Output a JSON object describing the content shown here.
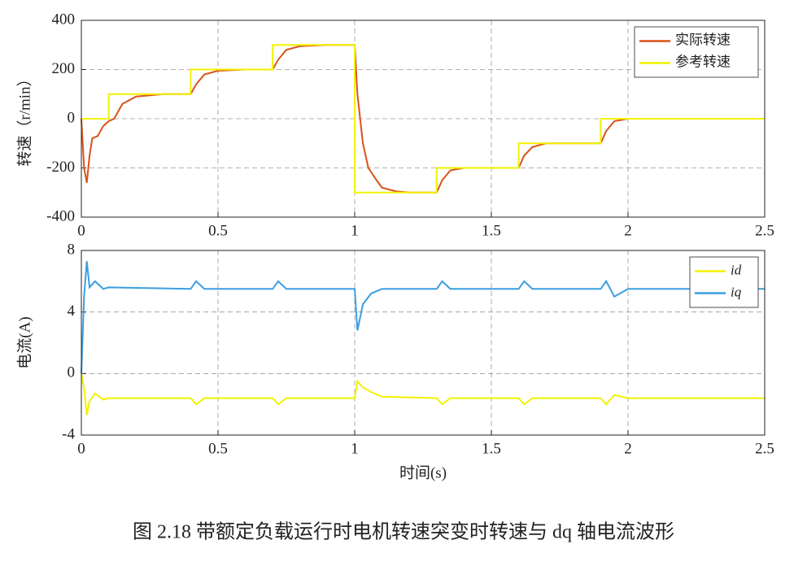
{
  "chart_data": [
    {
      "type": "line",
      "ylabel": "转速（r/min）",
      "xlim": [
        0,
        2.5
      ],
      "xticks": [
        0,
        0.5,
        1,
        1.5,
        2,
        2.5
      ],
      "ylim": [
        -400,
        400
      ],
      "yticks": [
        -400,
        -200,
        0,
        200,
        400
      ],
      "grid": true,
      "legend": "upper-right",
      "series": [
        {
          "name": "实际转速",
          "color": "#d95319",
          "x": [
            0,
            0.01,
            0.02,
            0.03,
            0.04,
            0.06,
            0.08,
            0.1,
            0.12,
            0.15,
            0.2,
            0.3,
            0.4,
            0.42,
            0.45,
            0.5,
            0.6,
            0.7,
            0.72,
            0.75,
            0.8,
            0.9,
            1.0,
            1.01,
            1.03,
            1.05,
            1.08,
            1.1,
            1.15,
            1.2,
            1.3,
            1.32,
            1.35,
            1.4,
            1.5,
            1.6,
            1.62,
            1.65,
            1.7,
            1.8,
            1.9,
            1.92,
            1.95,
            2.0,
            2.1,
            2.5
          ],
          "values": [
            0,
            -200,
            -260,
            -150,
            -80,
            -70,
            -30,
            -10,
            0,
            60,
            90,
            100,
            100,
            140,
            180,
            195,
            200,
            200,
            240,
            280,
            295,
            300,
            300,
            100,
            -100,
            -200,
            -250,
            -280,
            -295,
            -300,
            -300,
            -250,
            -210,
            -200,
            -200,
            -200,
            -150,
            -115,
            -100,
            -100,
            -100,
            -50,
            -10,
            0,
            0,
            0
          ]
        },
        {
          "name": "参考转速",
          "color": "#f2f200",
          "x": [
            0,
            0.1,
            0.1,
            0.4,
            0.4,
            0.7,
            0.7,
            1.0,
            1.0,
            1.3,
            1.3,
            1.6,
            1.6,
            1.9,
            1.9,
            2.5
          ],
          "values": [
            0,
            0,
            100,
            100,
            200,
            200,
            300,
            300,
            -300,
            -300,
            -200,
            -200,
            -100,
            -100,
            0,
            0
          ]
        }
      ]
    },
    {
      "type": "line",
      "ylabel": "电流(A)",
      "xlabel": "时间(s)",
      "xlim": [
        0,
        2.5
      ],
      "xticks": [
        0,
        0.5,
        1,
        1.5,
        2,
        2.5
      ],
      "ylim": [
        -4,
        8
      ],
      "yticks": [
        -4,
        0,
        4,
        8
      ],
      "grid": true,
      "legend": "upper-right",
      "series": [
        {
          "name": "id",
          "color": "#f2f200",
          "x": [
            0,
            0.01,
            0.02,
            0.03,
            0.05,
            0.08,
            0.1,
            0.4,
            0.42,
            0.45,
            0.7,
            0.72,
            0.75,
            1.0,
            1.01,
            1.03,
            1.06,
            1.1,
            1.3,
            1.32,
            1.35,
            1.6,
            1.62,
            1.65,
            1.9,
            1.92,
            1.95,
            2.0,
            2.5
          ],
          "values": [
            0,
            -1.0,
            -2.7,
            -1.8,
            -1.3,
            -1.7,
            -1.6,
            -1.6,
            -2.0,
            -1.6,
            -1.6,
            -2.0,
            -1.6,
            -1.6,
            -0.5,
            -0.9,
            -1.2,
            -1.5,
            -1.6,
            -2.0,
            -1.6,
            -1.6,
            -2.0,
            -1.6,
            -1.6,
            -2.0,
            -1.4,
            -1.6,
            -1.6
          ]
        },
        {
          "name": "iq",
          "color": "#3a9ee0",
          "x": [
            0,
            0.01,
            0.02,
            0.03,
            0.05,
            0.08,
            0.1,
            0.4,
            0.42,
            0.45,
            0.7,
            0.72,
            0.75,
            1.0,
            1.01,
            1.03,
            1.06,
            1.1,
            1.3,
            1.32,
            1.35,
            1.6,
            1.62,
            1.65,
            1.9,
            1.92,
            1.95,
            2.0,
            2.5
          ],
          "values": [
            0,
            5.0,
            7.3,
            5.6,
            6.0,
            5.5,
            5.6,
            5.5,
            6.0,
            5.5,
            5.5,
            6.0,
            5.5,
            5.5,
            2.8,
            4.5,
            5.2,
            5.5,
            5.5,
            6.0,
            5.5,
            5.5,
            6.0,
            5.5,
            5.5,
            6.0,
            5.0,
            5.5,
            5.5
          ]
        }
      ]
    }
  ],
  "caption": "图 2.18 带额定负载运行时电机转速突变时转速与 dq 轴电流波形"
}
